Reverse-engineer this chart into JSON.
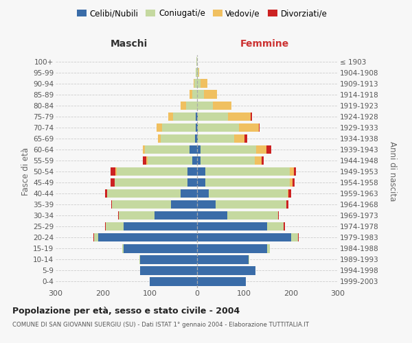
{
  "age_groups": [
    "0-4",
    "5-9",
    "10-14",
    "15-19",
    "20-24",
    "25-29",
    "30-34",
    "35-39",
    "40-44",
    "45-49",
    "50-54",
    "55-59",
    "60-64",
    "65-69",
    "70-74",
    "75-79",
    "80-84",
    "85-89",
    "90-94",
    "95-99",
    "100+"
  ],
  "birth_years": [
    "1999-2003",
    "1994-1998",
    "1989-1993",
    "1984-1988",
    "1979-1983",
    "1974-1978",
    "1969-1973",
    "1964-1968",
    "1959-1963",
    "1954-1958",
    "1949-1953",
    "1944-1948",
    "1939-1943",
    "1934-1938",
    "1929-1933",
    "1924-1928",
    "1919-1923",
    "1914-1918",
    "1909-1913",
    "1904-1908",
    "≤ 1903"
  ],
  "males": {
    "celibe": [
      100,
      120,
      120,
      155,
      210,
      155,
      90,
      55,
      35,
      20,
      20,
      10,
      15,
      4,
      2,
      2,
      0,
      0,
      0,
      0,
      0
    ],
    "coniugato": [
      0,
      0,
      2,
      3,
      8,
      38,
      75,
      125,
      155,
      155,
      150,
      95,
      95,
      72,
      72,
      48,
      22,
      10,
      5,
      2,
      1
    ],
    "vedovo": [
      0,
      0,
      0,
      0,
      0,
      0,
      0,
      0,
      0,
      0,
      3,
      2,
      4,
      6,
      12,
      10,
      12,
      5,
      2,
      0,
      0
    ],
    "divorziato": [
      0,
      0,
      0,
      0,
      2,
      2,
      2,
      2,
      5,
      8,
      10,
      7,
      0,
      0,
      0,
      0,
      0,
      0,
      0,
      0,
      0
    ]
  },
  "females": {
    "nubile": [
      105,
      125,
      110,
      150,
      200,
      150,
      65,
      40,
      25,
      18,
      18,
      8,
      8,
      2,
      2,
      2,
      0,
      0,
      0,
      0,
      0
    ],
    "coniugata": [
      0,
      0,
      2,
      5,
      15,
      35,
      108,
      150,
      168,
      180,
      180,
      115,
      118,
      78,
      88,
      65,
      35,
      15,
      8,
      3,
      1
    ],
    "vedova": [
      0,
      0,
      0,
      0,
      0,
      0,
      0,
      0,
      2,
      5,
      8,
      15,
      22,
      22,
      42,
      48,
      38,
      28,
      15,
      2,
      0
    ],
    "divorziata": [
      0,
      0,
      0,
      0,
      2,
      2,
      2,
      5,
      5,
      5,
      5,
      5,
      10,
      5,
      2,
      2,
      0,
      0,
      0,
      0,
      0
    ]
  },
  "colors": {
    "celibe_nubile": "#3a6ca8",
    "coniugato_a": "#c5d9a0",
    "vedovo_a": "#f0c060",
    "divorziato_a": "#cc2222"
  },
  "xlim": 300,
  "xticks": [
    -300,
    -200,
    -100,
    0,
    100,
    200,
    300
  ],
  "xticklabels": [
    "300",
    "200",
    "100",
    "0",
    "100",
    "200",
    "300"
  ],
  "title": "Popolazione per età, sesso e stato civile - 2004",
  "subtitle": "COMUNE DI SAN GIOVANNI SUERGIU (SU) - Dati ISTAT 1° gennaio 2004 - Elaborazione TUTTITALIA.IT",
  "ylabel_left": "Fasce di età",
  "ylabel_right": "Anni di nascita",
  "header_maschi": "Maschi",
  "header_femmine": "Femmine",
  "bg_color": "#f7f7f7",
  "grid_color": "#cccccc",
  "legend_labels": [
    "Celibi/Nubili",
    "Coniugati/e",
    "Vedovi/e",
    "Divorziati/e"
  ]
}
